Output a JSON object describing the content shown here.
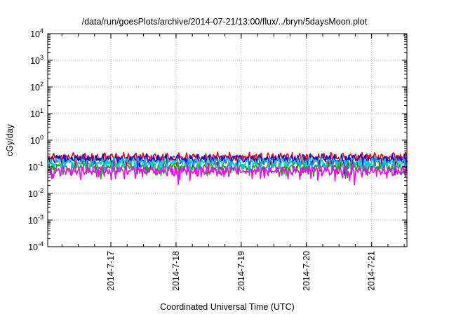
{
  "chart_data": {
    "type": "line",
    "title": "/data/run/goesPlots/archive/2014-07-21/13:00/flux/../bryn/5daysMoon.plot",
    "xlabel": "Coordinated Universal Time (UTC)",
    "ylabel": "cGy/day",
    "yscale": "log",
    "ylim": [
      "1e-4",
      "1e4"
    ],
    "xlim": [
      "2014-07-16 00:45",
      "2014-07-21 13:00"
    ],
    "grid": true,
    "y_ticks": [
      {
        "base": "10",
        "exp": "4"
      },
      {
        "base": "10",
        "exp": "3"
      },
      {
        "base": "10",
        "exp": "2"
      },
      {
        "base": "10",
        "exp": "1"
      },
      {
        "base": "10",
        "exp": "0"
      },
      {
        "base": "10",
        "exp": "-1"
      },
      {
        "base": "10",
        "exp": "-2"
      },
      {
        "base": "10",
        "exp": "-3"
      },
      {
        "base": "10",
        "exp": "-4"
      }
    ],
    "x_ticks": [
      "2014-7-17",
      "2014-7-18",
      "2014-7-19",
      "2014-7-20",
      "2014-7-21"
    ],
    "series": [
      {
        "color": "#ff0000",
        "base": 0.23
      },
      {
        "color": "#00aa00",
        "base": 0.1
      },
      {
        "color": "#0000ff",
        "base": 0.2
      },
      {
        "color": "#00cccc",
        "base": 0.15
      },
      {
        "color": "#ff00ff",
        "base": 0.075
      }
    ]
  }
}
